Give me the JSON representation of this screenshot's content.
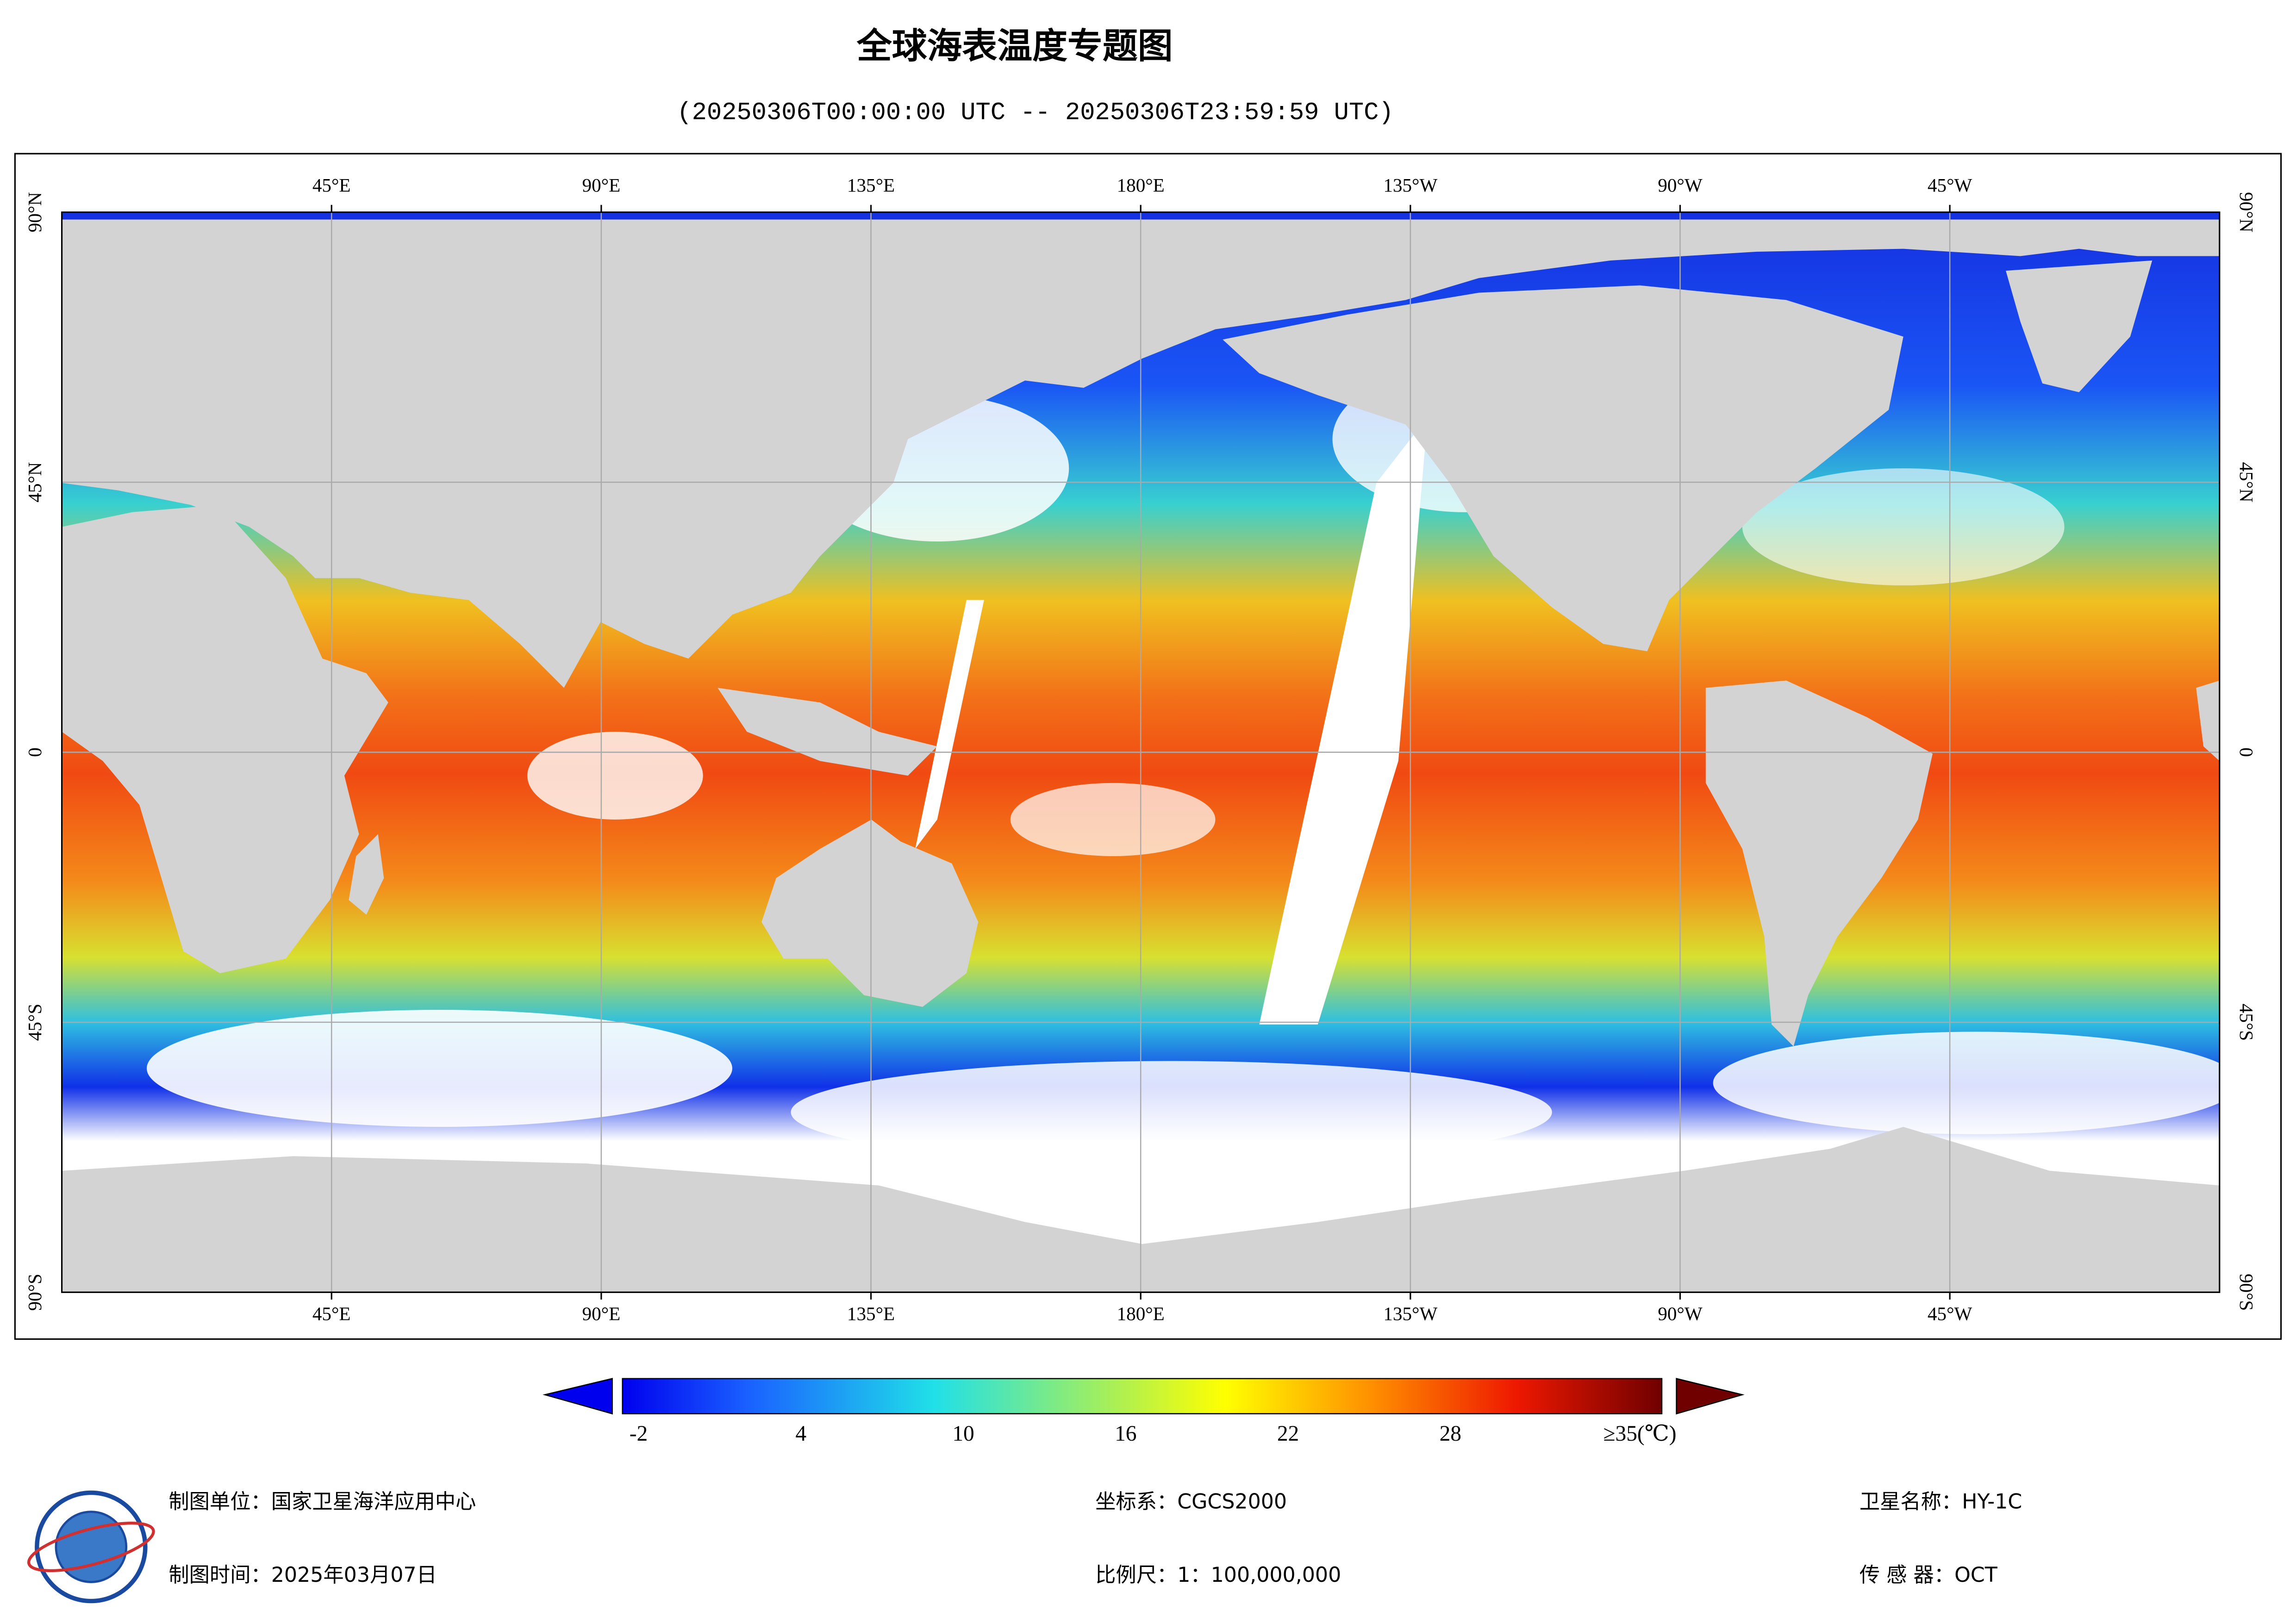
{
  "title": "全球海表温度专题图",
  "subtitle": "(20250306T00:00:00 UTC -- 20250306T23:59:59 UTC)",
  "map": {
    "lon_labels": [
      "45°E",
      "90°E",
      "135°E",
      "180°E",
      "135°W",
      "90°W",
      "45°W"
    ],
    "lat_labels": [
      "90°N",
      "45°N",
      "0",
      "45°S",
      "90°S"
    ]
  },
  "colorbar": {
    "ticks": [
      -2,
      4,
      10,
      16,
      22,
      28,
      {
        "value": 35,
        "label": "≥35(℃)"
      }
    ]
  },
  "footer": {
    "unit": "制图单位：国家卫星海洋应用中心",
    "time": "制图时间：2025年03月07日",
    "crs": "坐标系：CGCS2000",
    "scale": "比例尺：1：100,000,000",
    "satellite": "卫星名称：HY-1C",
    "sensor": "传 感 器：OCT"
  }
}
